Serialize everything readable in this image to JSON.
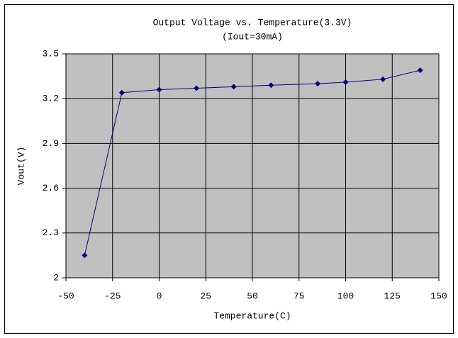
{
  "chart_data": {
    "type": "line",
    "title": "Output Voltage vs. Temperature(3.3V)",
    "subtitle": "(Iout=30mA)",
    "x_label": "Temperature(C)",
    "y_label": "Vout(V)",
    "x": [
      -40,
      -20,
      0,
      20,
      40,
      60,
      85,
      100,
      120,
      140
    ],
    "values": [
      2.15,
      3.24,
      3.26,
      3.27,
      3.28,
      3.29,
      3.3,
      3.31,
      3.33,
      3.39
    ],
    "color": "#000080",
    "xlim": [
      -50,
      150
    ],
    "xticks": [
      -50,
      -25,
      0,
      25,
      50,
      75,
      100,
      125,
      150
    ],
    "ylim": [
      2,
      3.5
    ],
    "yticks": [
      2,
      2.3,
      2.6,
      2.9,
      3.2,
      3.5
    ],
    "grid": true
  }
}
